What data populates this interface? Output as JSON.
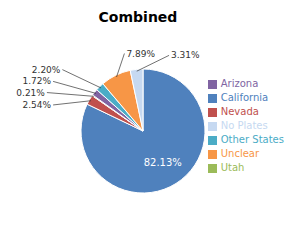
{
  "chart_data": {
    "type": "pie",
    "title": "Combined",
    "categories": [
      "California",
      "Nevada",
      "Utah",
      "Arizona",
      "Other States",
      "Unclear",
      "No Plates"
    ],
    "values": [
      82.13,
      2.54,
      0.21,
      1.72,
      2.2,
      7.89,
      3.31
    ],
    "value_labels": [
      "82.13%",
      "2.54%",
      "0.21%",
      "1.72%",
      "2.20%",
      "7.89%",
      "3.31%"
    ],
    "colors": [
      "#4F81BD",
      "#C0504D",
      "#9BBB59",
      "#8064A2",
      "#4BACC6",
      "#F79646",
      "#C6D9F1"
    ],
    "data_labels": true,
    "legend": "right"
  }
}
